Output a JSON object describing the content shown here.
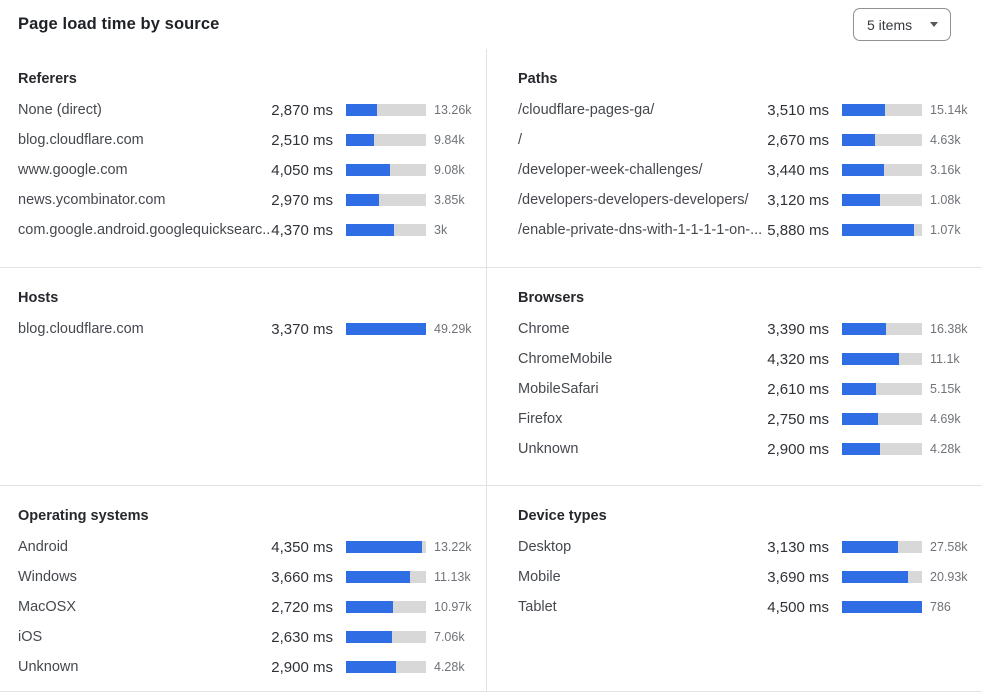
{
  "header": {
    "title": "Page load time by source"
  },
  "controls": {
    "items_dropdown": {
      "value": "5 items"
    }
  },
  "colors": {
    "bar_fill": "#2f6de5",
    "bar_track": "#d8d8d8",
    "divider": "#e3e3e3"
  },
  "chart_data": [
    {
      "id": "referers",
      "type": "bar",
      "title": "Referers",
      "unit": "ms",
      "value_label": "page load time (ms)",
      "count_label": "visits",
      "bar_scale": 7300,
      "rows": [
        {
          "label": "None (direct)",
          "ms": 2870,
          "count": "13.26k"
        },
        {
          "label": "blog.cloudflare.com",
          "ms": 2510,
          "count": "9.84k"
        },
        {
          "label": "www.google.com",
          "ms": 4050,
          "count": "9.08k"
        },
        {
          "label": "news.ycombinator.com",
          "ms": 2970,
          "count": "3.85k"
        },
        {
          "label": "com.google.android.googlequicksearc...",
          "ms": 4370,
          "count": "3k"
        }
      ]
    },
    {
      "id": "paths",
      "type": "bar",
      "title": "Paths",
      "unit": "ms",
      "value_label": "page load time (ms)",
      "count_label": "visits",
      "bar_scale": 6500,
      "rows": [
        {
          "label": "/cloudflare-pages-ga/",
          "ms": 3510,
          "count": "15.14k"
        },
        {
          "label": "/",
          "ms": 2670,
          "count": "4.63k"
        },
        {
          "label": "/developer-week-challenges/",
          "ms": 3440,
          "count": "3.16k"
        },
        {
          "label": "/developers-developers-developers/",
          "ms": 3120,
          "count": "1.08k"
        },
        {
          "label": "/enable-private-dns-with-1-1-1-1-on-...",
          "ms": 5880,
          "count": "1.07k"
        }
      ]
    },
    {
      "id": "hosts",
      "type": "bar",
      "title": "Hosts",
      "unit": "ms",
      "value_label": "page load time (ms)",
      "count_label": "visits",
      "bar_scale": 3370,
      "rows": [
        {
          "label": "blog.cloudflare.com",
          "ms": 3370,
          "count": "49.29k"
        }
      ]
    },
    {
      "id": "browsers",
      "type": "bar",
      "title": "Browsers",
      "unit": "ms",
      "value_label": "page load time (ms)",
      "count_label": "visits",
      "bar_scale": 6100,
      "rows": [
        {
          "label": "Chrome",
          "ms": 3390,
          "count": "16.38k"
        },
        {
          "label": "ChromeMobile",
          "ms": 4320,
          "count": "11.1k"
        },
        {
          "label": "MobileSafari",
          "ms": 2610,
          "count": "5.15k"
        },
        {
          "label": "Firefox",
          "ms": 2750,
          "count": "4.69k"
        },
        {
          "label": "Unknown",
          "ms": 2900,
          "count": "4.28k"
        }
      ]
    },
    {
      "id": "operating-systems",
      "type": "bar",
      "title": "Operating systems",
      "unit": "ms",
      "value_label": "page load time (ms)",
      "count_label": "visits",
      "bar_scale": 4600,
      "rows": [
        {
          "label": "Android",
          "ms": 4350,
          "count": "13.22k"
        },
        {
          "label": "Windows",
          "ms": 3660,
          "count": "11.13k"
        },
        {
          "label": "MacOSX",
          "ms": 2720,
          "count": "10.97k"
        },
        {
          "label": "iOS",
          "ms": 2630,
          "count": "7.06k"
        },
        {
          "label": "Unknown",
          "ms": 2900,
          "count": "4.28k"
        }
      ]
    },
    {
      "id": "device-types",
      "type": "bar",
      "title": "Device types",
      "unit": "ms",
      "value_label": "page load time (ms)",
      "count_label": "visits",
      "bar_scale": 4500,
      "rows": [
        {
          "label": "Desktop",
          "ms": 3130,
          "count": "27.58k"
        },
        {
          "label": "Mobile",
          "ms": 3690,
          "count": "20.93k"
        },
        {
          "label": "Tablet",
          "ms": 4500,
          "count": "786"
        }
      ]
    }
  ]
}
